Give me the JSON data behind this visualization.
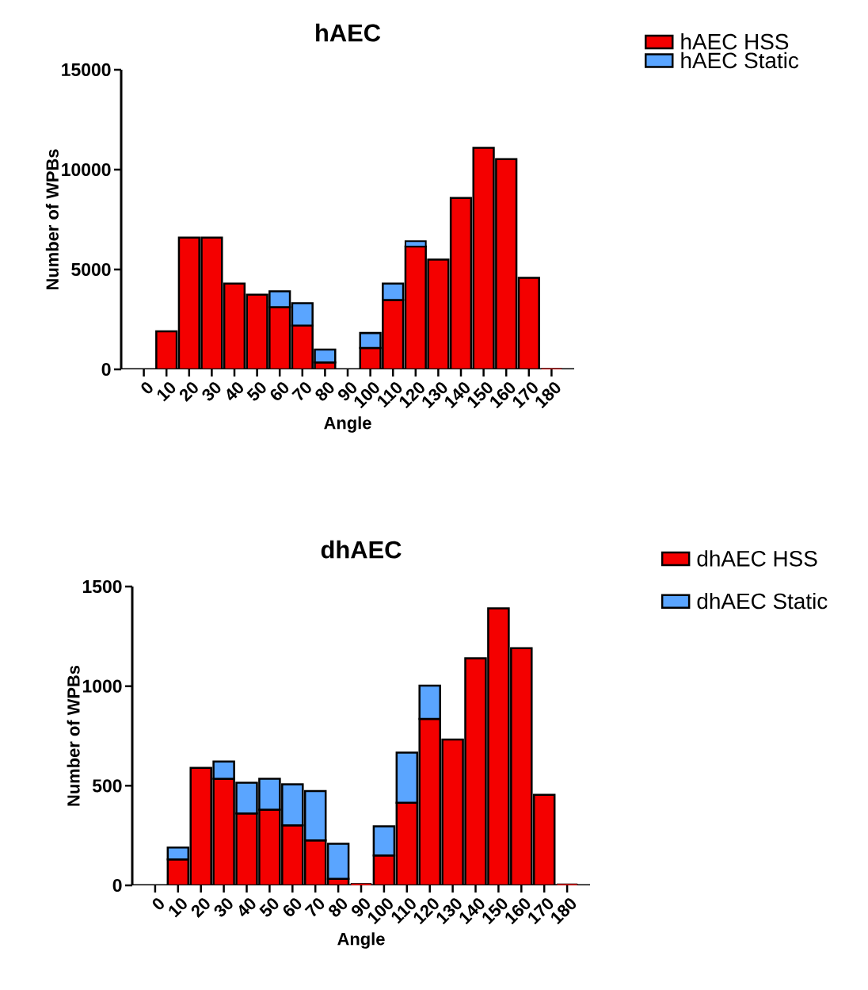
{
  "chart_data": [
    {
      "type": "bar",
      "title": "hAEC",
      "xlabel": "Angle",
      "ylabel": "Number of WPBs",
      "stacked": true,
      "categories": [
        "0",
        "10",
        "20",
        "30",
        "40",
        "50",
        "60",
        "70",
        "80",
        "90",
        "100",
        "110",
        "120",
        "130",
        "140",
        "150",
        "160",
        "170",
        "180"
      ],
      "series": [
        {
          "name": "hAEC HSS",
          "color": "#f40000",
          "values": [
            0,
            1900,
            6600,
            6600,
            4300,
            3740,
            3110,
            2190,
            350,
            0,
            1070,
            3470,
            6150,
            5500,
            8580,
            11090,
            10530,
            4580,
            50
          ]
        },
        {
          "name": "hAEC Static",
          "color": "#5aa5ff",
          "values": [
            null,
            null,
            null,
            null,
            null,
            null,
            800,
            1120,
            640,
            null,
            750,
            830,
            270,
            null,
            null,
            null,
            null,
            null,
            null
          ]
        }
      ],
      "ylim": [
        0,
        15000
      ],
      "yticks": [
        0,
        5000,
        10000,
        15000
      ],
      "grid": false,
      "legend": "top right"
    },
    {
      "type": "bar",
      "title": "dhAEC",
      "xlabel": "Angle",
      "ylabel": "Number of WPBs",
      "stacked": true,
      "categories": [
        "0",
        "10",
        "20",
        "30",
        "40",
        "50",
        "60",
        "70",
        "80",
        "90",
        "100",
        "110",
        "120",
        "130",
        "140",
        "150",
        "160",
        "170",
        "180"
      ],
      "series": [
        {
          "name": "dhAEC HSS",
          "color": "#f40000",
          "values": [
            0,
            130,
            590,
            535,
            361,
            380,
            301,
            226,
            33,
            10,
            150,
            415,
            836,
            732,
            1140,
            1391,
            1191,
            455,
            8
          ]
        },
        {
          "name": "dhAEC Static",
          "color": "#5aa5ff",
          "values": [
            null,
            60,
            null,
            87,
            154,
            155,
            206,
            247,
            176,
            null,
            146,
            251,
            167,
            null,
            null,
            null,
            null,
            null,
            null
          ]
        }
      ],
      "ylim": [
        0,
        1500
      ],
      "yticks": [
        0,
        500,
        1000,
        1500
      ],
      "grid": false,
      "legend": "top right"
    }
  ]
}
